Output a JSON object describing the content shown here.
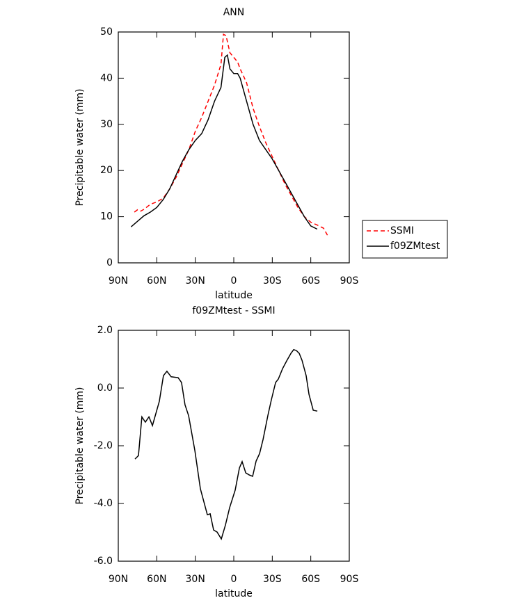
{
  "chart_data": [
    {
      "type": "line",
      "title": "ANN",
      "xlabel": "latitude",
      "ylabel": "Precipitable water (mm)",
      "xlim": [
        90,
        -90
      ],
      "ylim": [
        0,
        50
      ],
      "xticks": [
        {
          "value": 90,
          "label": "90N"
        },
        {
          "value": 60,
          "label": "60N"
        },
        {
          "value": 30,
          "label": "30N"
        },
        0,
        {
          "value": -30,
          "label": "30S"
        },
        {
          "value": -60,
          "label": "60S"
        },
        {
          "value": -90,
          "label": "90S"
        }
      ],
      "yticks": [
        0,
        10,
        20,
        30,
        40,
        50
      ],
      "legend": "right",
      "series": [
        {
          "name": "SSMI",
          "color": "#ff0000",
          "linestyle": "dashed",
          "x": [
            77.5,
            75,
            72.5,
            70,
            65,
            60,
            55,
            50,
            45,
            40,
            35,
            30,
            25,
            20,
            15,
            10,
            8,
            6,
            3,
            0,
            -3,
            -5,
            -10,
            -15,
            -20,
            -25,
            -30,
            -35,
            -40,
            -45,
            -50,
            -55,
            -60,
            -65,
            -70,
            -73
          ],
          "values": [
            11,
            11.5,
            11.2,
            11.6,
            12.7,
            13.2,
            14,
            16,
            18.5,
            21.5,
            24.5,
            28.5,
            31.5,
            35,
            38.5,
            43,
            49.5,
            49.2,
            45.5,
            44.5,
            43.5,
            42,
            39,
            33.5,
            29.5,
            26,
            23,
            20,
            17,
            14.5,
            12,
            10,
            8.8,
            8.2,
            7.5,
            6
          ]
        },
        {
          "name": "f09ZMtest",
          "color": "#000000",
          "linestyle": "solid",
          "x": [
            80,
            75,
            70,
            65,
            60,
            55,
            50,
            45,
            40,
            35,
            30,
            25,
            20,
            15,
            10,
            7,
            5,
            3,
            0,
            -3,
            -5,
            -10,
            -15,
            -20,
            -25,
            -30,
            -35,
            -40,
            -45,
            -50,
            -55,
            -60,
            -65
          ],
          "values": [
            7.8,
            9,
            10.2,
            11,
            12,
            13.7,
            16,
            19,
            22,
            24.5,
            26.5,
            28,
            31,
            35,
            38,
            44.5,
            45,
            42,
            41,
            41,
            40,
            35,
            30,
            26.5,
            24.5,
            22.5,
            20,
            17.5,
            15,
            12.5,
            10,
            8,
            7.3
          ]
        }
      ]
    },
    {
      "type": "line",
      "title": "f09ZMtest - SSMI",
      "xlabel": "latitude",
      "ylabel": "Precipitable water (mm)",
      "xlim": [
        90,
        -90
      ],
      "ylim": [
        -6,
        2
      ],
      "xticks": [
        {
          "value": 90,
          "label": "90N"
        },
        {
          "value": 60,
          "label": "60N"
        },
        {
          "value": 30,
          "label": "30N"
        },
        0,
        {
          "value": -30,
          "label": "30S"
        },
        {
          "value": -60,
          "label": "60S"
        },
        {
          "value": -90,
          "label": "90S"
        }
      ],
      "yticks": [
        {
          "value": 2,
          "label": "2.0"
        },
        {
          "value": 0,
          "label": "0.0"
        },
        {
          "value": -2,
          "label": "-2.0"
        },
        {
          "value": -4,
          "label": "-4.0"
        },
        {
          "value": -6,
          "label": "-6.0"
        }
      ],
      "series": [
        {
          "color": "#000000",
          "linestyle": "solid",
          "x": [
            77,
            74.3,
            71.6,
            68.9,
            66.1,
            63.4,
            58,
            54.8,
            52.1,
            48.8,
            43.4,
            40.7,
            38,
            35.2,
            30.3,
            26,
            20.6,
            18.4,
            15.7,
            13,
            9.7,
            6.5,
            3.2,
            -1.1,
            -4.4,
            -6.5,
            -9.3,
            -12,
            -14.7,
            -17.4,
            -20.1,
            -22.8,
            -26.6,
            -29.3,
            -32.6,
            -34.7,
            -38,
            -41.2,
            -44.5,
            -46.7,
            -48.8,
            -51,
            -53.2,
            -56.4,
            -58.6,
            -61.9,
            -65.1
          ],
          "values": [
            -2.46,
            -2.34,
            -1.0,
            -1.18,
            -1.0,
            -1.3,
            -0.46,
            0.43,
            0.58,
            0.39,
            0.36,
            0.19,
            -0.58,
            -0.96,
            -2.17,
            -3.49,
            -4.39,
            -4.36,
            -4.92,
            -4.99,
            -5.23,
            -4.75,
            -4.14,
            -3.54,
            -2.77,
            -2.55,
            -2.94,
            -3.01,
            -3.06,
            -2.53,
            -2.27,
            -1.78,
            -0.94,
            -0.41,
            0.19,
            0.31,
            0.67,
            0.94,
            1.2,
            1.33,
            1.3,
            1.2,
            0.96,
            0.43,
            -0.22,
            -0.77,
            -0.8
          ]
        }
      ]
    }
  ]
}
